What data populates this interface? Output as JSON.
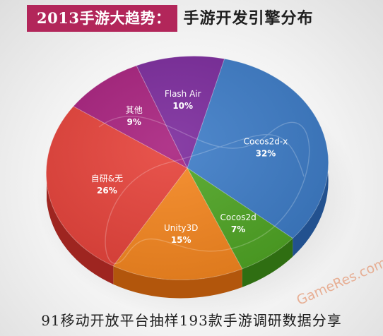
{
  "header": {
    "title_main": "2013手游大趋势：",
    "title_sub": "手游开发引擎分布"
  },
  "chart_data": {
    "type": "pie",
    "slices": [
      {
        "label": "Cocos2d-x",
        "value": 32,
        "value_label": "32%",
        "color": "#3d7cc7",
        "side_color": "#22518f"
      },
      {
        "label": "Cocos2d",
        "value": 7,
        "value_label": "7%",
        "color": "#4fa524",
        "side_color": "#2f6e12"
      },
      {
        "label": "Unity3D",
        "value": 15,
        "value_label": "15%",
        "color": "#f5861f",
        "side_color": "#b2560c"
      },
      {
        "label": "自研&无",
        "value": 26,
        "value_label": "26%",
        "color": "#e6423a",
        "side_color": "#9e2520"
      },
      {
        "label": "其他",
        "value": 9,
        "value_label": "9%",
        "color": "#a8217e",
        "side_color": "#6a124e"
      },
      {
        "label": "Flash Air",
        "value": 10,
        "value_label": "10%",
        "color": "#7b2a9c",
        "side_color": "#4c1763"
      }
    ]
  },
  "footer": {
    "text": "91移动开放平台抽样193款手游调研数据分享"
  },
  "watermark": {
    "text": "GameRes.com"
  }
}
